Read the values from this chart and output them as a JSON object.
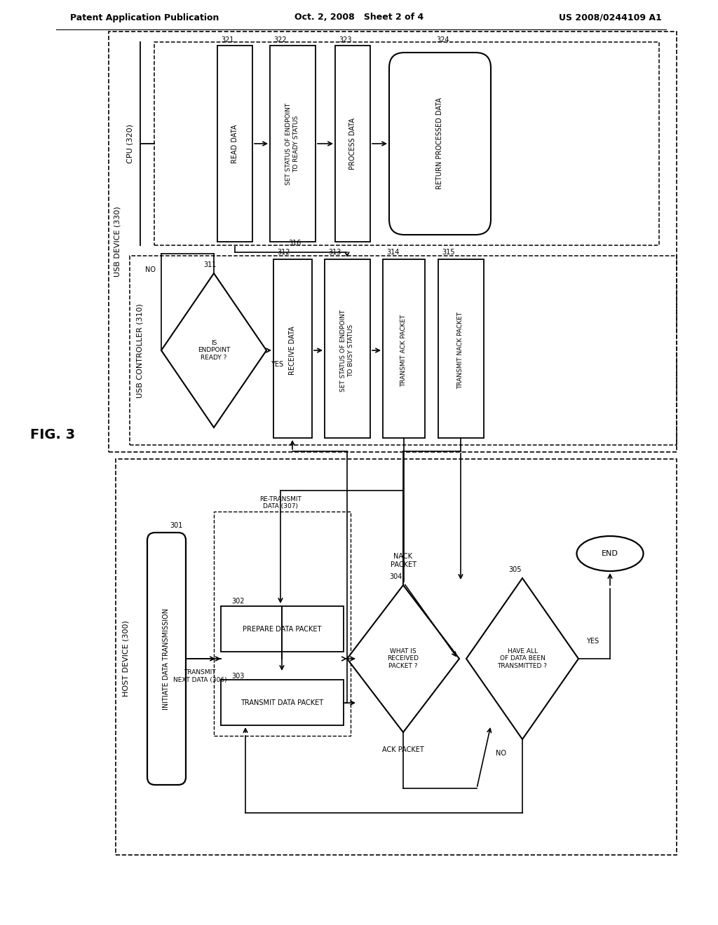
{
  "bg": "#ffffff",
  "header_left": "Patent Application Publication",
  "header_mid": "Oct. 2, 2008   Sheet 2 of 4",
  "header_right": "US 2008/0244109 A1",
  "fig_label": "FIG. 3"
}
